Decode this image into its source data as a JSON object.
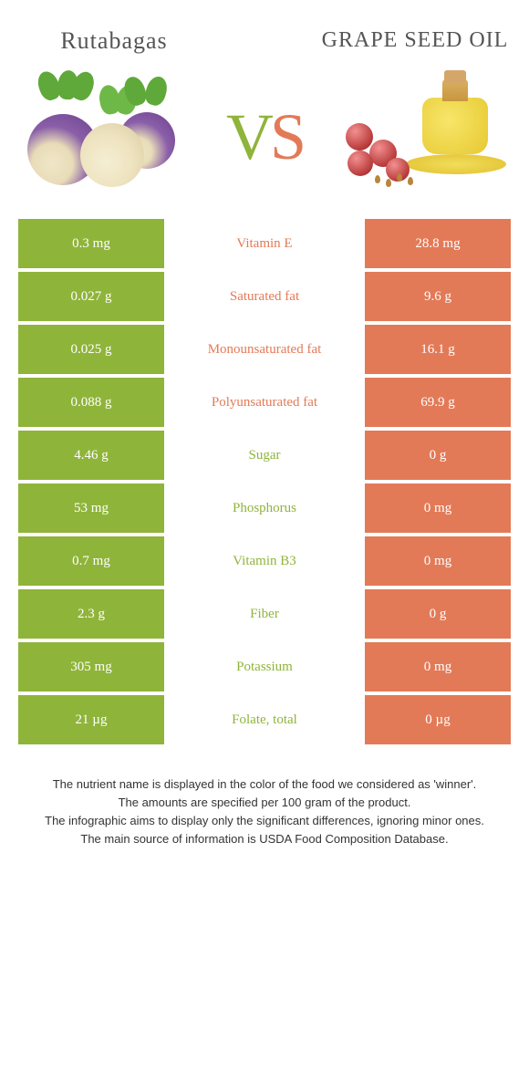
{
  "colors": {
    "left": "#8fb43a",
    "right": "#e37a57",
    "row_gap": "#ffffff"
  },
  "header": {
    "left_title": "Rutabagas",
    "right_title": "GRAPE SEED OIL"
  },
  "vs": {
    "v": "V",
    "s": "S"
  },
  "rows": [
    {
      "left": "0.3 mg",
      "label": "Vitamin E",
      "right": "28.8 mg",
      "winner": "right"
    },
    {
      "left": "0.027 g",
      "label": "Saturated fat",
      "right": "9.6 g",
      "winner": "right"
    },
    {
      "left": "0.025 g",
      "label": "Monounsaturated fat",
      "right": "16.1 g",
      "winner": "right"
    },
    {
      "left": "0.088 g",
      "label": "Polyunsaturated fat",
      "right": "69.9 g",
      "winner": "right"
    },
    {
      "left": "4.46 g",
      "label": "Sugar",
      "right": "0 g",
      "winner": "left"
    },
    {
      "left": "53 mg",
      "label": "Phosphorus",
      "right": "0 mg",
      "winner": "left"
    },
    {
      "left": "0.7 mg",
      "label": "Vitamin B3",
      "right": "0 mg",
      "winner": "left"
    },
    {
      "left": "2.3 g",
      "label": "Fiber",
      "right": "0 g",
      "winner": "left"
    },
    {
      "left": "305 mg",
      "label": "Potassium",
      "right": "0 mg",
      "winner": "left"
    },
    {
      "left": "21 µg",
      "label": "Folate, total",
      "right": "0 µg",
      "winner": "left"
    }
  ],
  "footer": {
    "line1": "The nutrient name is displayed in the color of the food we considered as 'winner'.",
    "line2": "The amounts are specified per 100 gram of the product.",
    "line3": "The infographic aims to display only the significant differences, ignoring minor ones.",
    "line4": "The main source of information is USDA Food Composition Database."
  }
}
